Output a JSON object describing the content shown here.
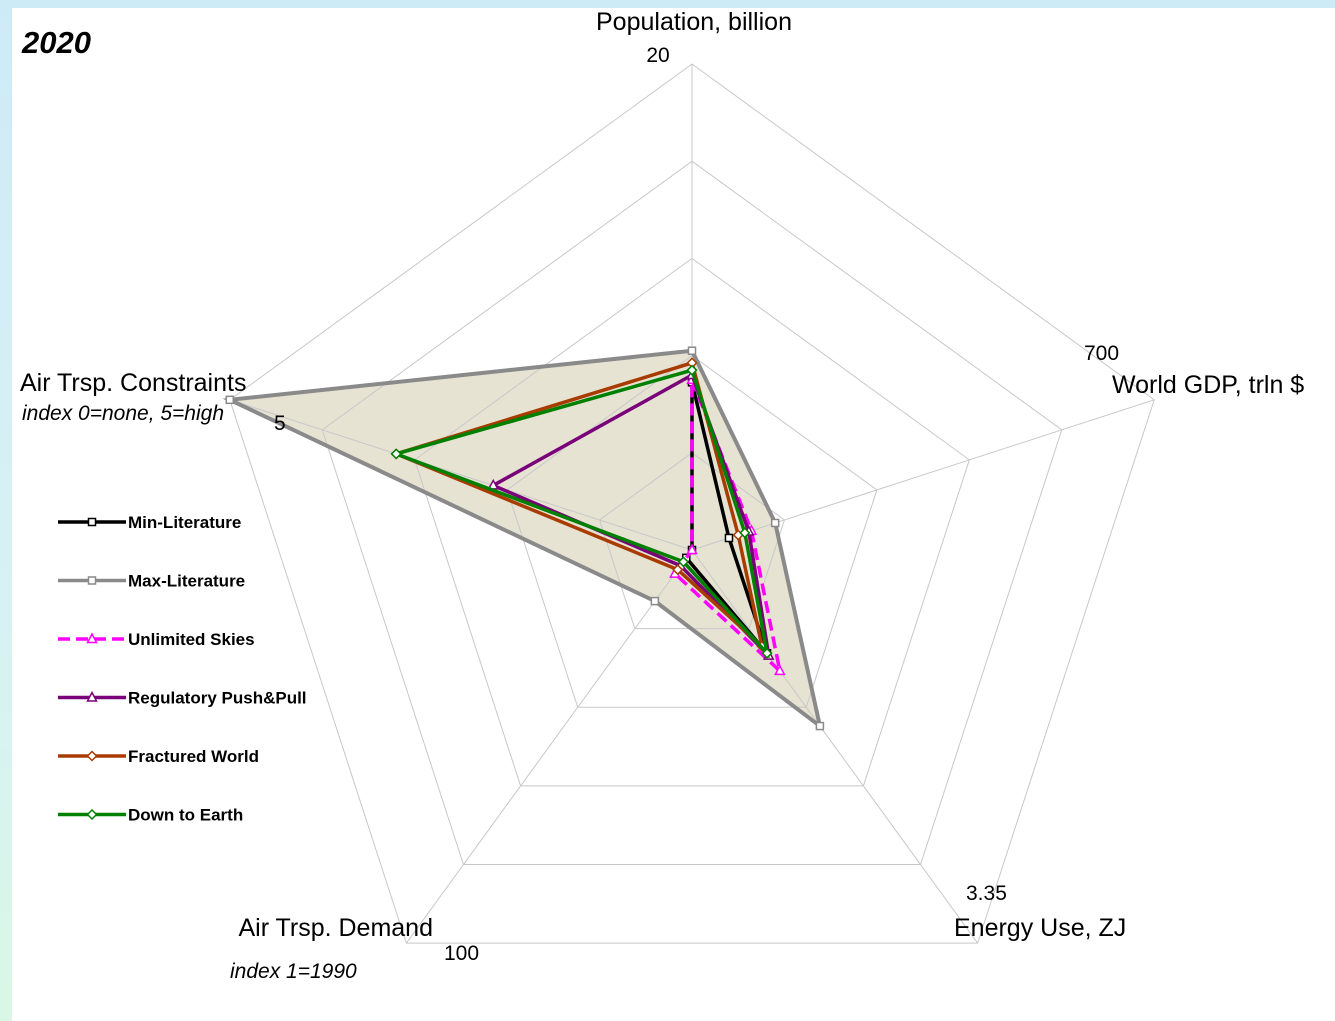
{
  "chart_data": {
    "type": "radar",
    "title": "2020",
    "axes": [
      {
        "name": "Population, billion",
        "subtitle": "",
        "max_label": "20",
        "max": 20
      },
      {
        "name": "World GDP, trln $",
        "subtitle": "",
        "max_label": "700",
        "max": 700
      },
      {
        "name": "Energy Use, ZJ",
        "subtitle": "",
        "max_label": "3.35",
        "max": 3.35
      },
      {
        "name": "Air Trsp. Demand",
        "subtitle": "index 1=1990",
        "max_label": "100",
        "max": 100
      },
      {
        "name": "Air Trsp. Constraints",
        "subtitle": "index 0=none, 5=high",
        "max_label": "5",
        "max": 5
      }
    ],
    "rings": 5,
    "series": [
      {
        "name": "Min-Literature",
        "color": "#000000",
        "marker": "square",
        "dash": false,
        "values": [
          6.9,
          56,
          0.88,
          2,
          0
        ]
      },
      {
        "name": "Max-Literature",
        "color": "#8a8a8a",
        "marker": "square",
        "dash": false,
        "values": [
          8.2,
          126,
          1.5,
          13,
          5
        ]
      },
      {
        "name": "Unlimited Skies",
        "color": "#ff00ff",
        "marker": "triangle",
        "dash": true,
        "values": [
          7.0,
          90,
          1.03,
          6,
          0
        ]
      },
      {
        "name": "Regulatory Push&Pull",
        "color": "#7a007a",
        "marker": "triangle",
        "dash": false,
        "values": [
          7.2,
          86,
          0.9,
          4,
          2.15
        ]
      },
      {
        "name": "Fractured World",
        "color": "#a83c00",
        "marker": "diamond",
        "dash": false,
        "values": [
          7.7,
          70,
          0.82,
          5,
          3.2
        ]
      },
      {
        "name": "Down to Earth",
        "color": "#008000",
        "marker": "diamond",
        "dash": false,
        "values": [
          7.4,
          80,
          0.88,
          3,
          3.2
        ]
      }
    ],
    "fill_series": "Max-Literature",
    "fill_color": "#e6e3d3",
    "grid": true
  }
}
